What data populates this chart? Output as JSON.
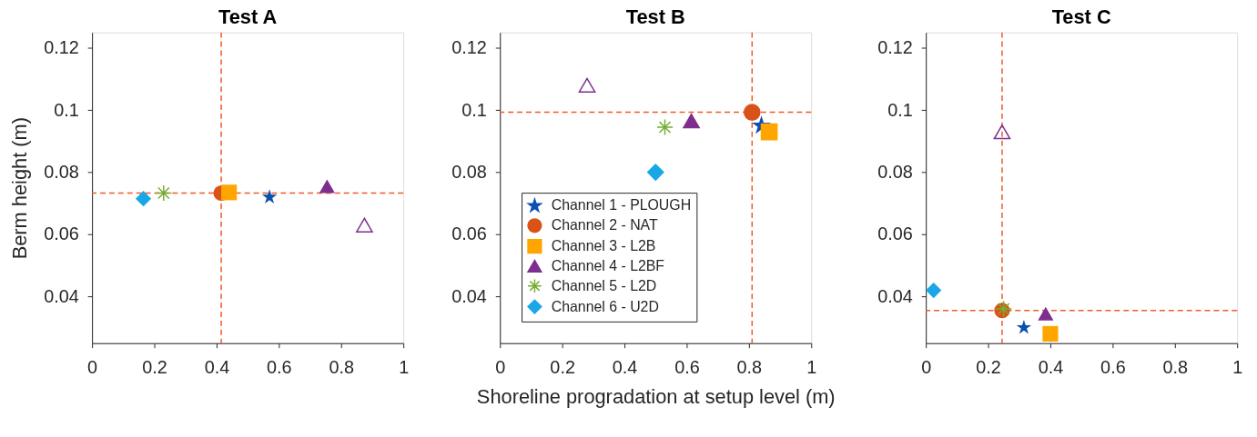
{
  "chart_data": [
    {
      "type": "scatter",
      "title": "Test A",
      "ylabel": "Berm height (m)",
      "xlim": [
        0,
        1
      ],
      "ylim": [
        0.025,
        0.125
      ],
      "xticks": [
        0,
        0.2,
        0.4,
        0.6,
        0.8,
        1
      ],
      "yticks": [
        0.04,
        0.06,
        0.08,
        0.1,
        0.12
      ],
      "grid": false,
      "series": [
        {
          "color": "#0b4fb0",
          "marker": "star",
          "x": [
            0.57
          ],
          "values": [
            0.072
          ]
        },
        {
          "color": "#d95319",
          "marker": "circle",
          "x": [
            0.415
          ],
          "values": [
            0.0733
          ]
        },
        {
          "color": "#ffa500",
          "marker": "square",
          "x": [
            0.44
          ],
          "values": [
            0.0735
          ]
        },
        {
          "color": "#7e2f8e",
          "marker": "triangle",
          "x": [
            0.755
          ],
          "values": [
            0.0755
          ]
        },
        {
          "color": "#77ac30",
          "marker": "cross",
          "x": [
            0.23
          ],
          "values": [
            0.0733
          ]
        },
        {
          "color": "#1aa7e6",
          "marker": "diamond",
          "x": [
            0.165
          ],
          "values": [
            0.0715
          ]
        },
        {
          "color": "#7e2f8e",
          "marker": "triangle",
          "x": [
            0.875
          ],
          "values": [
            0.063
          ]
        }
      ],
      "ref_lines": [
        {
          "axis": "x",
          "value": 0.415,
          "color": "#f05a28",
          "line_style": "dashed"
        },
        {
          "axis": "y",
          "value": 0.0733,
          "color": "#f05a28",
          "line_style": "dashed"
        }
      ]
    },
    {
      "type": "scatter",
      "title": "Test B",
      "xlabel": "Shoreline progradation at setup level (m)",
      "xlim": [
        0,
        1
      ],
      "ylim": [
        0.025,
        0.125
      ],
      "xticks": [
        0,
        0.2,
        0.4,
        0.6,
        0.8,
        1
      ],
      "yticks": [
        0.04,
        0.06,
        0.08,
        0.1,
        0.12
      ],
      "grid": false,
      "legend": "bottom left",
      "series": [
        {
          "name": "Channel 1 - PLOUGH",
          "color": "#0b4fb0",
          "marker": "star",
          "x": [
            0.84
          ],
          "values": [
            0.095
          ]
        },
        {
          "name": "Channel 2 - NAT",
          "color": "#d95319",
          "marker": "circle",
          "x": [
            0.81
          ],
          "values": [
            0.0993
          ]
        },
        {
          "name": "Channel 3 - L2B",
          "color": "#ffa500",
          "marker": "square",
          "x": [
            0.865
          ],
          "values": [
            0.093
          ]
        },
        {
          "name": "Channel 4 - L2BF",
          "color": "#7e2f8e",
          "marker": "triangle",
          "x": [
            0.615
          ],
          "values": [
            0.0965
          ]
        },
        {
          "name": "Channel 5 - L2D",
          "color": "#77ac30",
          "marker": "cross",
          "x": [
            0.53
          ],
          "values": [
            0.0945
          ]
        },
        {
          "name": "Channel 6 - U2D",
          "color": "#1aa7e6",
          "marker": "diamond",
          "x": [
            0.5
          ],
          "values": [
            0.08
          ]
        },
        {
          "color": "#7e2f8e",
          "marker": "triangle",
          "x": [
            0.28
          ],
          "values": [
            0.108
          ]
        }
      ],
      "ref_lines": [
        {
          "axis": "x",
          "value": 0.81,
          "color": "#f05a28",
          "line_style": "dashed"
        },
        {
          "axis": "y",
          "value": 0.0993,
          "color": "#f05a28",
          "line_style": "dashed"
        }
      ]
    },
    {
      "type": "scatter",
      "title": "Test C",
      "xlim": [
        0,
        1
      ],
      "ylim": [
        0.025,
        0.125
      ],
      "xticks": [
        0,
        0.2,
        0.4,
        0.6,
        0.8,
        1
      ],
      "yticks": [
        0.04,
        0.06,
        0.08,
        0.1,
        0.12
      ],
      "grid": false,
      "series": [
        {
          "color": "#0b4fb0",
          "marker": "star",
          "x": [
            0.315
          ],
          "values": [
            0.03
          ]
        },
        {
          "color": "#d95319",
          "marker": "circle",
          "x": [
            0.245
          ],
          "values": [
            0.0355
          ]
        },
        {
          "color": "#ffa500",
          "marker": "square",
          "x": [
            0.4
          ],
          "values": [
            0.028
          ]
        },
        {
          "color": "#7e2f8e",
          "marker": "triangle",
          "x": [
            0.385
          ],
          "values": [
            0.0345
          ]
        },
        {
          "color": "#77ac30",
          "marker": "cross",
          "x": [
            0.25
          ],
          "values": [
            0.036
          ]
        },
        {
          "color": "#1aa7e6",
          "marker": "diamond",
          "x": [
            0.025
          ],
          "values": [
            0.042
          ]
        },
        {
          "color": "#7e2f8e",
          "marker": "triangle",
          "x": [
            0.245
          ],
          "values": [
            0.093
          ]
        }
      ],
      "ref_lines": [
        {
          "axis": "x",
          "value": 0.245,
          "color": "#f05a28",
          "line_style": "dashed"
        },
        {
          "axis": "y",
          "value": 0.0355,
          "color": "#f05a28",
          "line_style": "dashed"
        }
      ]
    }
  ]
}
